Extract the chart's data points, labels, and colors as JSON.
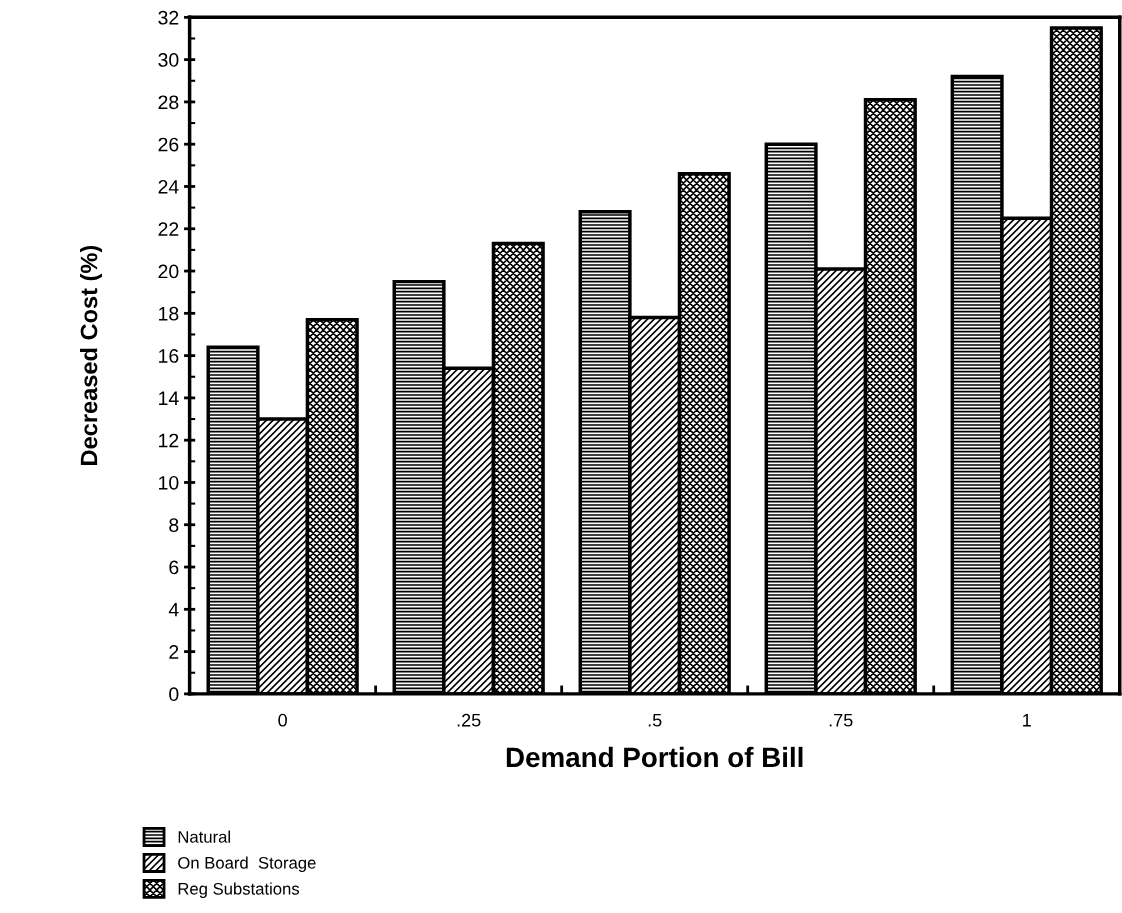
{
  "chart_data": {
    "type": "bar",
    "xlabel": "Demand Portion of Bill",
    "ylabel": "Decreased Cost (%)",
    "categories": [
      "0",
      ".25",
      ".5",
      ".75",
      "1"
    ],
    "series": [
      {
        "name": "Natural",
        "color": "#000000",
        "values": [
          16.4,
          19.5,
          22.8,
          26.0,
          29.2
        ]
      },
      {
        "name": "On Board  Storage",
        "color": "#000000",
        "values": [
          13.0,
          15.4,
          17.8,
          20.1,
          22.5
        ]
      },
      {
        "name": "Reg Substations",
        "color": "#000000",
        "values": [
          17.7,
          21.3,
          24.6,
          28.1,
          31.5
        ]
      }
    ],
    "ylim": [
      0,
      32
    ],
    "yticks": [
      0,
      2,
      4,
      6,
      8,
      10,
      12,
      14,
      16,
      18,
      20,
      22,
      24,
      26,
      28,
      30,
      32
    ],
    "grid": false,
    "legend": "bottom left"
  }
}
